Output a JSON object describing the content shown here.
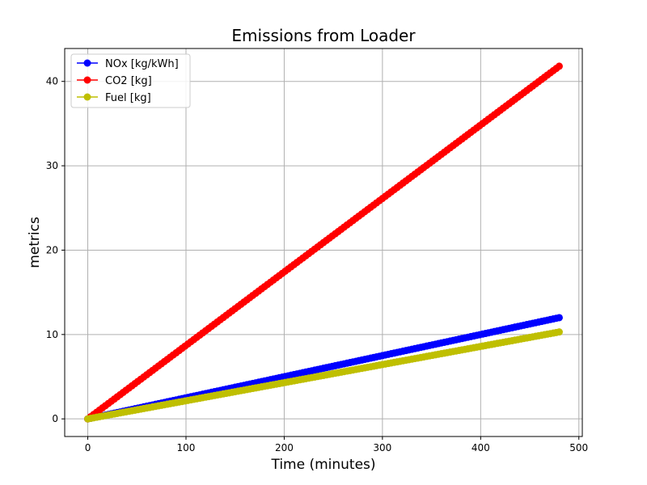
{
  "chart_data": {
    "type": "line",
    "title": "Emissions from Loader",
    "xlabel": "Time (minutes)",
    "ylabel": "metrics",
    "xlim": [
      -23.5,
      503.5
    ],
    "ylim": [
      -2.09,
      43.9
    ],
    "xticks": [
      0,
      100,
      200,
      300,
      400,
      500
    ],
    "yticks": [
      0,
      10,
      20,
      30,
      40
    ],
    "grid": true,
    "legend_position": "upper-left",
    "x_range": [
      0,
      480
    ],
    "point_step": 3,
    "series": [
      {
        "name": "NOx [kg/kWh]",
        "color": "#0000ff",
        "start": 0.0,
        "end": 12.0
      },
      {
        "name": "CO2 [kg]",
        "color": "#ff0000",
        "start": 0.0,
        "end": 41.8
      },
      {
        "name": "Fuel [kg]",
        "color": "#bfbf00",
        "start": 0.0,
        "end": 10.3
      }
    ]
  }
}
